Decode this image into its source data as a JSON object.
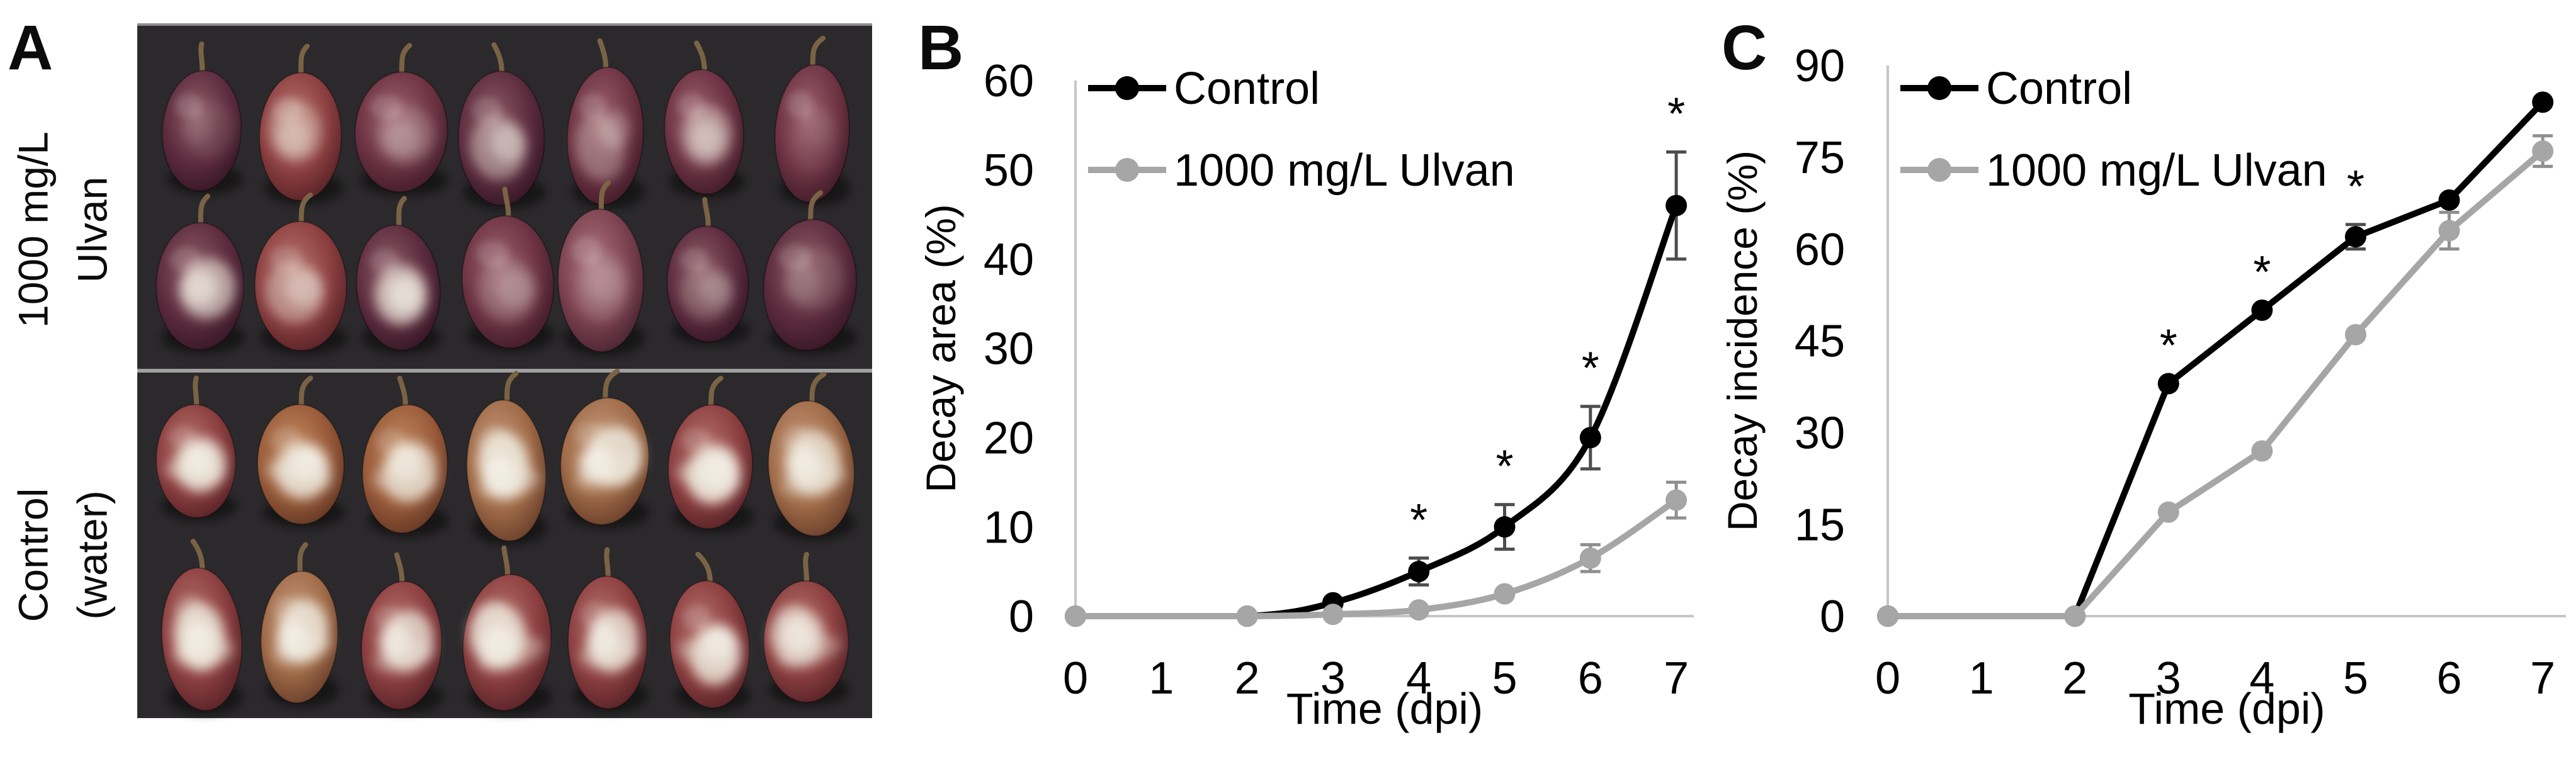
{
  "panel_a": {
    "label": "A",
    "groups": [
      {
        "id": "ulvan-treated",
        "label_line1": "1000 mg/L",
        "label_line2": "Ulvan",
        "rows": 2,
        "cols": 7,
        "mold_level": "low"
      },
      {
        "id": "control-water",
        "label_line1": "Control",
        "label_line2": "(water)",
        "rows": 2,
        "cols": 7,
        "mold_level": "high"
      }
    ],
    "photo": {
      "background": "#2b292b",
      "top_line_color": "#8d8d8d",
      "divider_color": "#a0a0a0",
      "mold_color": "#ece7da",
      "mold_bright_color": "#f7f4ec",
      "stem_color": "#7a6345",
      "grape_palette": [
        {
          "light": "#a8707a",
          "mid": "#7c4150",
          "dark": "#401e2b"
        },
        {
          "light": "#c08a62",
          "mid": "#9a5b3a",
          "dark": "#57301f"
        },
        {
          "light": "#9a5f6b",
          "mid": "#6d3344",
          "dark": "#371623"
        },
        {
          "light": "#b4726a",
          "mid": "#8c3f40",
          "dark": "#4b1c22"
        },
        {
          "light": "#8d5a66",
          "mid": "#5d2c3e",
          "dark": "#2d1220"
        },
        {
          "light": "#c59a7c",
          "mid": "#a06b48",
          "dark": "#5c3423"
        },
        {
          "light": "#b07d72",
          "mid": "#82454a",
          "dark": "#45222a"
        }
      ]
    }
  },
  "chart_data": [
    {
      "panel_label": "B",
      "type": "line",
      "title": "",
      "xlabel": "Time (dpi)",
      "ylabel": "Decay area (%)",
      "xlim": [
        0,
        7
      ],
      "ylim": [
        0,
        60
      ],
      "xticks": [
        0,
        1,
        2,
        3,
        4,
        5,
        6,
        7
      ],
      "yticks": [
        0,
        10,
        20,
        30,
        40,
        50,
        60
      ],
      "grid": false,
      "smooth": true,
      "legend_position": "top-left",
      "asterisk": "*",
      "series": [
        {
          "name": "Control",
          "color": "#000000",
          "err_color": "#4d4d4d",
          "x": [
            0,
            2,
            3,
            4,
            5,
            6,
            7
          ],
          "y": [
            0,
            0,
            1.5,
            5,
            10,
            20,
            46
          ],
          "err": [
            0,
            0,
            0,
            1.5,
            2.5,
            3.5,
            6
          ],
          "sig": [
            0,
            0,
            0,
            1,
            1,
            1,
            1
          ]
        },
        {
          "name": "1000 mg/L Ulvan",
          "color": "#a6a6a6",
          "err_color": "#8f8f8f",
          "x": [
            0,
            2,
            3,
            4,
            5,
            6,
            7
          ],
          "y": [
            0,
            0,
            0.2,
            0.7,
            2.5,
            6.5,
            13
          ],
          "err": [
            0,
            0,
            0,
            0,
            0,
            1.5,
            2
          ],
          "sig": [
            0,
            0,
            0,
            0,
            0,
            0,
            0
          ]
        }
      ]
    },
    {
      "panel_label": "C",
      "type": "line",
      "title": "",
      "xlabel": "Time (dpi)",
      "ylabel": "Decay incidence (%)",
      "xlim": [
        0,
        7
      ],
      "ylim": [
        0,
        90
      ],
      "xticks": [
        0,
        1,
        2,
        3,
        4,
        5,
        6,
        7
      ],
      "yticks": [
        0,
        15,
        30,
        45,
        60,
        75,
        90
      ],
      "grid": false,
      "smooth": false,
      "legend_position": "top-left",
      "asterisk": "*",
      "series": [
        {
          "name": "Control",
          "color": "#000000",
          "err_color": "#4d4d4d",
          "x": [
            0,
            2,
            3,
            4,
            5,
            6,
            7
          ],
          "y": [
            0,
            0,
            38,
            50,
            62,
            68,
            84
          ],
          "err": [
            0,
            0,
            0,
            0,
            2,
            0,
            0
          ],
          "sig": [
            0,
            0,
            1,
            1,
            1,
            0,
            0
          ]
        },
        {
          "name": "1000 mg/L Ulvan",
          "color": "#a6a6a6",
          "err_color": "#8f8f8f",
          "x": [
            0,
            2,
            3,
            4,
            5,
            6,
            7
          ],
          "y": [
            0,
            0,
            17,
            27,
            46,
            63,
            76
          ],
          "err": [
            0,
            0,
            0,
            0,
            0,
            3,
            2.5
          ],
          "sig": [
            0,
            0,
            0,
            0,
            0,
            0,
            0
          ]
        }
      ]
    }
  ]
}
